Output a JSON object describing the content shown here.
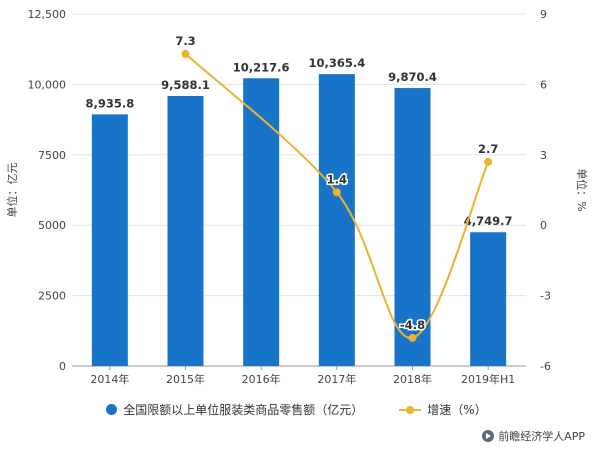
{
  "chart_data": {
    "type": "bar+line",
    "categories": [
      "2014年",
      "2015年",
      "2016年",
      "2017年",
      "2018年",
      "2019年H1"
    ],
    "series": [
      {
        "name": "全国限额以上单位服装类商品零售额（亿元）",
        "type": "bar",
        "axis": "left",
        "values": [
          8935.8,
          9588.1,
          10217.6,
          10365.4,
          9870.4,
          4749.7
        ],
        "labels": [
          "8,935.8",
          "9,588.1",
          "10,217.6",
          "10,365.4",
          "9,870.4",
          "4,749.7"
        ]
      },
      {
        "name": "增速（%）",
        "type": "line",
        "axis": "right",
        "values": [
          null,
          7.3,
          null,
          1.4,
          -4.8,
          2.7
        ],
        "labels": [
          "",
          "7.3",
          "",
          "1.4",
          "-4.8",
          "2.7"
        ]
      }
    ],
    "ylabel": "单位：亿元",
    "ylabel_right": "单位：%",
    "ylim": [
      0,
      12500
    ],
    "ylim_right": [
      -6,
      9
    ],
    "yticks": [
      "0",
      "2500",
      "5000",
      "7500",
      "10,000",
      "12,500"
    ],
    "yticks_right": [
      "-6",
      "-3",
      "0",
      "3",
      "6",
      "9"
    ],
    "grid": true,
    "legend_position": "bottom"
  },
  "colors": {
    "bar": "#1874c8",
    "line": "#f0b030"
  },
  "watermark": "前瞻经济学人APP",
  "icons": {
    "watermark": "play-logo-icon"
  }
}
